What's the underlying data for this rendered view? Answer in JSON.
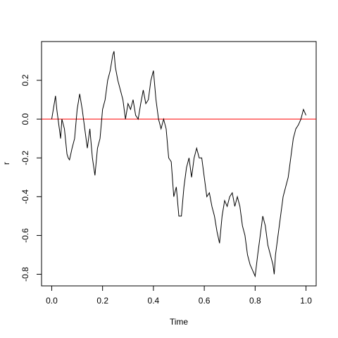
{
  "chart_data": {
    "type": "line",
    "x_label": "Time",
    "y_label": "r",
    "x": [
      0,
      0.01,
      0.015,
      0.02,
      0.03,
      0.035,
      0.04,
      0.05,
      0.06,
      0.065,
      0.07,
      0.08,
      0.09,
      0.1,
      0.11,
      0.12,
      0.13,
      0.14,
      0.15,
      0.16,
      0.17,
      0.18,
      0.19,
      0.2,
      0.21,
      0.22,
      0.23,
      0.24,
      0.245,
      0.25,
      0.26,
      0.27,
      0.28,
      0.29,
      0.3,
      0.31,
      0.32,
      0.33,
      0.34,
      0.35,
      0.36,
      0.37,
      0.38,
      0.39,
      0.4,
      0.41,
      0.42,
      0.43,
      0.44,
      0.45,
      0.46,
      0.47,
      0.48,
      0.49,
      0.5,
      0.51,
      0.52,
      0.53,
      0.54,
      0.55,
      0.56,
      0.57,
      0.58,
      0.59,
      0.6,
      0.61,
      0.62,
      0.63,
      0.64,
      0.65,
      0.66,
      0.67,
      0.68,
      0.69,
      0.7,
      0.71,
      0.72,
      0.73,
      0.74,
      0.75,
      0.76,
      0.77,
      0.78,
      0.79,
      0.8,
      0.81,
      0.82,
      0.83,
      0.84,
      0.85,
      0.86,
      0.87,
      0.875,
      0.88,
      0.89,
      0.9,
      0.91,
      0.92,
      0.93,
      0.94,
      0.95,
      0.96,
      0.97,
      0.98,
      0.99,
      1.0
    ],
    "series": [
      {
        "name": "r",
        "color": "#000000",
        "values": [
          0,
          0.08,
          0.12,
          0.05,
          -0.05,
          -0.1,
          0,
          -0.05,
          -0.18,
          -0.2,
          -0.21,
          -0.15,
          -0.1,
          0.05,
          0.13,
          0.05,
          -0.05,
          -0.15,
          -0.05,
          -0.2,
          -0.29,
          -0.15,
          -0.1,
          0.05,
          0.1,
          0.2,
          0.25,
          0.33,
          0.35,
          0.27,
          0.2,
          0.15,
          0.1,
          0,
          0.08,
          0.05,
          0.1,
          0.02,
          0,
          0.08,
          0.15,
          0.08,
          0.1,
          0.2,
          0.25,
          0.1,
          0,
          -0.05,
          0,
          -0.05,
          -0.2,
          -0.22,
          -0.4,
          -0.35,
          -0.5,
          -0.5,
          -0.35,
          -0.25,
          -0.2,
          -0.3,
          -0.2,
          -0.15,
          -0.2,
          -0.2,
          -0.3,
          -0.4,
          -0.38,
          -0.45,
          -0.5,
          -0.58,
          -0.64,
          -0.5,
          -0.42,
          -0.45,
          -0.4,
          -0.38,
          -0.45,
          -0.4,
          -0.45,
          -0.55,
          -0.6,
          -0.7,
          -0.75,
          -0.78,
          -0.81,
          -0.7,
          -0.6,
          -0.5,
          -0.55,
          -0.65,
          -0.7,
          -0.75,
          -0.8,
          -0.7,
          -0.6,
          -0.5,
          -0.4,
          -0.35,
          -0.3,
          -0.2,
          -0.1,
          -0.05,
          -0.03,
          0,
          0.05,
          0.02
        ]
      }
    ],
    "reference_line": 0,
    "reference_color": "#ff0000",
    "xlim": [
      -0.04,
      1.04
    ],
    "xticks": [
      {
        "value": 0,
        "label": "0.0"
      },
      {
        "value": 0.2,
        "label": "0.2"
      },
      {
        "value": 0.4,
        "label": "0.4"
      },
      {
        "value": 0.6,
        "label": "0.6"
      },
      {
        "value": 0.8,
        "label": "0.8"
      },
      {
        "value": 1,
        "label": "1.0"
      }
    ],
    "ylim": [
      -0.86,
      0.4
    ],
    "yticks": [
      {
        "value": -0.8,
        "label": "-0.8"
      },
      {
        "value": -0.6,
        "label": "-0.6"
      },
      {
        "value": -0.4,
        "label": "-0.4"
      },
      {
        "value": -0.2,
        "label": "-0.2"
      },
      {
        "value": 0,
        "label": "0.0"
      },
      {
        "value": 0.2,
        "label": "0.2"
      }
    ]
  }
}
